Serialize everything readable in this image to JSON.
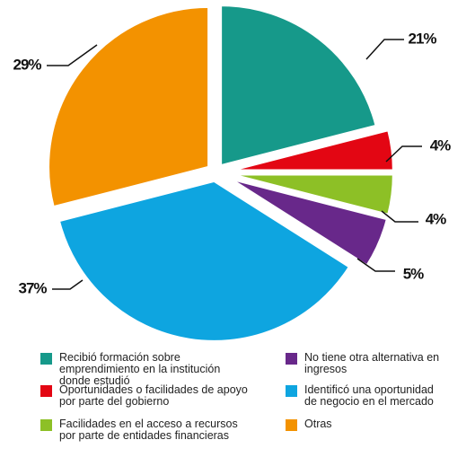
{
  "chart_data": {
    "type": "pie",
    "series": [
      {
        "name": "Recibió formación sobre emprendimiento en la institución donde estudió",
        "color": "#16998a",
        "values": [
          21
        ],
        "value_labels": [
          "21%"
        ]
      },
      {
        "name": "Oportunidades o facilidades de apoyo por parte del gobierno",
        "color": "#e30613",
        "values": [
          4
        ],
        "value_labels": [
          "4%"
        ]
      },
      {
        "name": "Facilidades en el acceso a recursos por parte de entidades financieras",
        "color": "#8dc026",
        "values": [
          4
        ],
        "value_labels": [
          "4%"
        ]
      },
      {
        "name": "No tiene otra alternativa en ingresos",
        "color": "#68288a",
        "values": [
          5
        ],
        "value_labels": [
          "5%"
        ]
      },
      {
        "name": "Identificó una oportunidad de negocio en el mercado",
        "color": "#0ea5e0",
        "values": [
          37
        ],
        "value_labels": [
          "37%"
        ]
      },
      {
        "name": "Otras",
        "color": "#f39200",
        "values": [
          29
        ],
        "value_labels": [
          "29%"
        ]
      }
    ]
  }
}
